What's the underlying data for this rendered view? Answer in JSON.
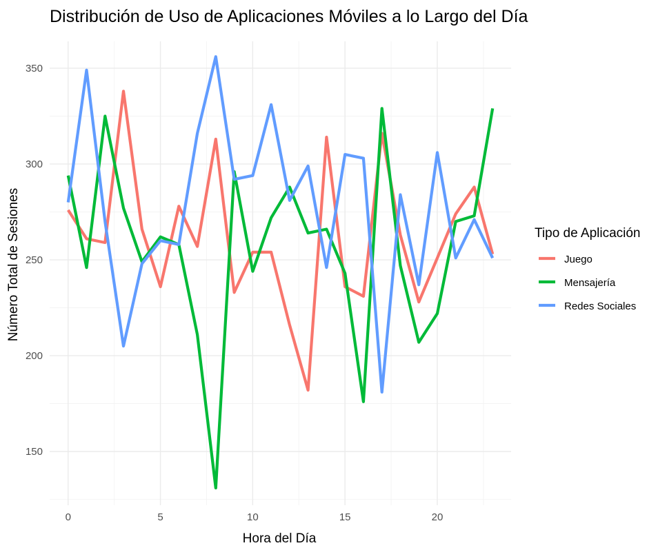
{
  "chart_data": {
    "type": "line",
    "title": "Distribución de Uso de Aplicaciones Móviles a lo Largo del Día",
    "xlabel": "Hora del Día",
    "ylabel": "Número Total de Sesiones",
    "xlim": [
      -1,
      24
    ],
    "ylim": [
      122,
      364
    ],
    "xticks": [
      0,
      5,
      10,
      15,
      20
    ],
    "yticks": [
      150,
      200,
      250,
      300,
      350
    ],
    "grid": true,
    "legend": {
      "title": "Tipo de Aplicación",
      "position": "right"
    },
    "x": [
      0,
      1,
      2,
      3,
      4,
      5,
      6,
      7,
      8,
      9,
      10,
      11,
      12,
      13,
      14,
      15,
      16,
      17,
      18,
      19,
      20,
      21,
      22,
      23
    ],
    "series": [
      {
        "name": "Juego",
        "color": "#F8766D",
        "values": [
          276,
          261,
          259,
          338,
          266,
          236,
          278,
          257,
          313,
          233,
          254,
          254,
          216,
          182,
          314,
          236,
          231,
          316,
          263,
          228,
          251,
          274,
          288,
          253
        ]
      },
      {
        "name": "Mensajería",
        "color": "#00BA38",
        "values": [
          294,
          246,
          325,
          277,
          249,
          262,
          258,
          211,
          131,
          296,
          244,
          272,
          288,
          264,
          266,
          243,
          176,
          329,
          247,
          207,
          222,
          270,
          273,
          329
        ]
      },
      {
        "name": "Redes Sociales",
        "color": "#619CFF",
        "values": [
          280,
          349,
          270,
          205,
          248,
          260,
          258,
          316,
          356,
          292,
          294,
          331,
          281,
          299,
          246,
          305,
          303,
          181,
          284,
          237,
          306,
          251,
          271,
          251
        ]
      }
    ]
  }
}
